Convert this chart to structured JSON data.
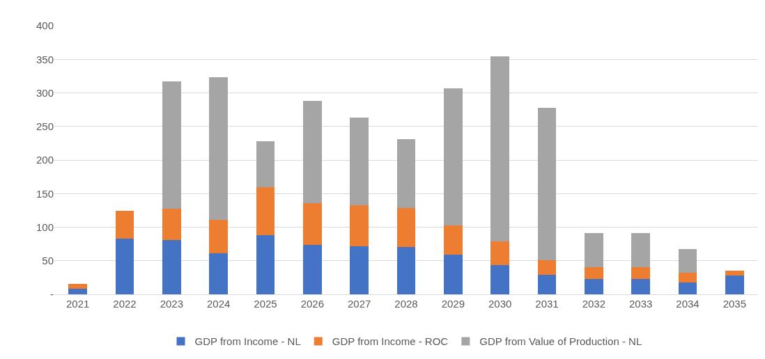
{
  "chart_data": {
    "type": "bar",
    "stacked": true,
    "categories": [
      "2021",
      "2022",
      "2023",
      "2024",
      "2025",
      "2026",
      "2027",
      "2028",
      "2029",
      "2030",
      "2031",
      "2032",
      "2033",
      "2034",
      "2035"
    ],
    "series": [
      {
        "name": "GDP from Income - NL",
        "color": "#4472c4",
        "values": [
          8,
          83,
          81,
          61,
          88,
          74,
          72,
          70,
          59,
          44,
          29,
          23,
          23,
          18,
          28
        ]
      },
      {
        "name": "GDP from Income - ROC",
        "color": "#ed7d31",
        "values": [
          8,
          41,
          46,
          50,
          72,
          62,
          61,
          58,
          44,
          35,
          22,
          17,
          17,
          14,
          7
        ]
      },
      {
        "name": "GDP from Value of Production - NL",
        "color": "#a5a5a5",
        "values": [
          null,
          null,
          190,
          212,
          68,
          152,
          130,
          103,
          204,
          275,
          227,
          51,
          51,
          35,
          null
        ]
      }
    ],
    "ylim": [
      0,
      400
    ],
    "yticks": [
      {
        "value": 0,
        "label": "-"
      },
      50,
      100,
      150,
      200,
      250,
      300,
      350,
      400
    ],
    "grid": "y",
    "legend": "bottom"
  }
}
